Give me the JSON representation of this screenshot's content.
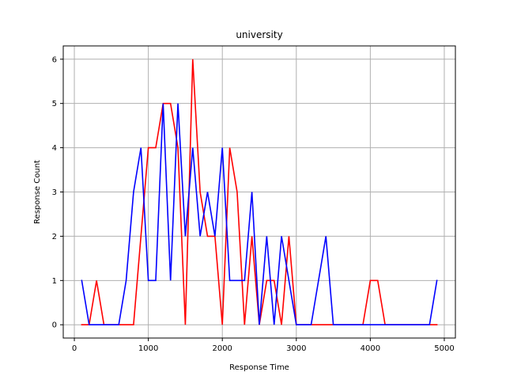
{
  "chart_data": {
    "type": "line",
    "title": "university",
    "xlabel": "Response Time",
    "ylabel": "Response Count",
    "xlim": [
      -150,
      5150
    ],
    "ylim": [
      -0.3,
      6.3
    ],
    "xticks": [
      0,
      1000,
      2000,
      3000,
      4000,
      5000
    ],
    "yticks": [
      0,
      1,
      2,
      3,
      4,
      5,
      6
    ],
    "grid": true,
    "x": [
      100,
      200,
      300,
      400,
      500,
      600,
      700,
      800,
      900,
      1000,
      1100,
      1200,
      1300,
      1400,
      1500,
      1600,
      1700,
      1800,
      1900,
      2000,
      2100,
      2200,
      2300,
      2400,
      2500,
      2600,
      2700,
      2800,
      2900,
      3000,
      3100,
      3200,
      3300,
      3400,
      3500,
      3600,
      3700,
      3800,
      3900,
      4000,
      4100,
      4200,
      4300,
      4400,
      4500,
      4600,
      4700,
      4800,
      4900
    ],
    "series": [
      {
        "color": "#ff0000",
        "values": [
          0,
          0,
          1,
          0,
          0,
          0,
          0,
          0,
          2,
          4,
          4,
          5,
          5,
          4,
          0,
          6,
          3,
          2,
          2,
          0,
          4,
          3,
          0,
          2,
          0,
          1,
          1,
          0,
          2,
          0,
          0,
          0,
          0,
          0,
          0,
          0,
          0,
          0,
          0,
          1,
          1,
          0,
          0,
          0,
          0,
          0,
          0,
          0,
          0
        ]
      },
      {
        "color": "#0000ff",
        "values": [
          1,
          0,
          0,
          0,
          0,
          0,
          1,
          3,
          4,
          1,
          1,
          5,
          1,
          5,
          2,
          4,
          2,
          3,
          2,
          4,
          1,
          1,
          1,
          3,
          0,
          2,
          0,
          2,
          1,
          0,
          0,
          0,
          1,
          2,
          0,
          0,
          0,
          0,
          0,
          0,
          0,
          0,
          0,
          0,
          0,
          0,
          0,
          0,
          1
        ]
      }
    ]
  }
}
